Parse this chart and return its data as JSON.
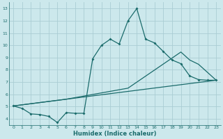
{
  "bg_color": "#cce8ec",
  "grid_color": "#aacdd4",
  "line_color": "#1a6b6b",
  "xlabel": "Humidex (Indice chaleur)",
  "xlim": [
    -0.5,
    23.5
  ],
  "ylim": [
    3.5,
    13.5
  ],
  "yticks": [
    4,
    5,
    6,
    7,
    8,
    9,
    10,
    11,
    12,
    13
  ],
  "xticks": [
    0,
    1,
    2,
    3,
    4,
    5,
    6,
    7,
    8,
    9,
    10,
    11,
    12,
    13,
    14,
    15,
    16,
    17,
    18,
    19,
    20,
    21,
    22,
    23
  ],
  "line1_x": [
    0,
    1,
    2,
    3,
    4,
    5,
    6,
    7,
    8,
    9,
    10,
    11,
    12,
    13,
    14,
    15,
    16,
    17,
    18,
    19,
    20,
    21,
    22,
    23
  ],
  "line1_y": [
    5.05,
    4.85,
    4.4,
    4.35,
    4.2,
    3.7,
    4.5,
    4.45,
    4.45,
    8.9,
    10.0,
    10.5,
    10.1,
    12.0,
    13.0,
    10.5,
    10.2,
    9.5,
    8.8,
    8.5,
    7.5,
    7.2,
    7.15,
    7.15
  ],
  "line2_x": [
    0,
    23
  ],
  "line2_y": [
    5.05,
    7.15
  ],
  "line3_x": [
    0,
    6,
    13,
    19,
    20,
    21,
    22,
    23
  ],
  "line3_y": [
    5.05,
    5.6,
    6.5,
    9.45,
    8.8,
    8.45,
    7.8,
    7.15
  ]
}
